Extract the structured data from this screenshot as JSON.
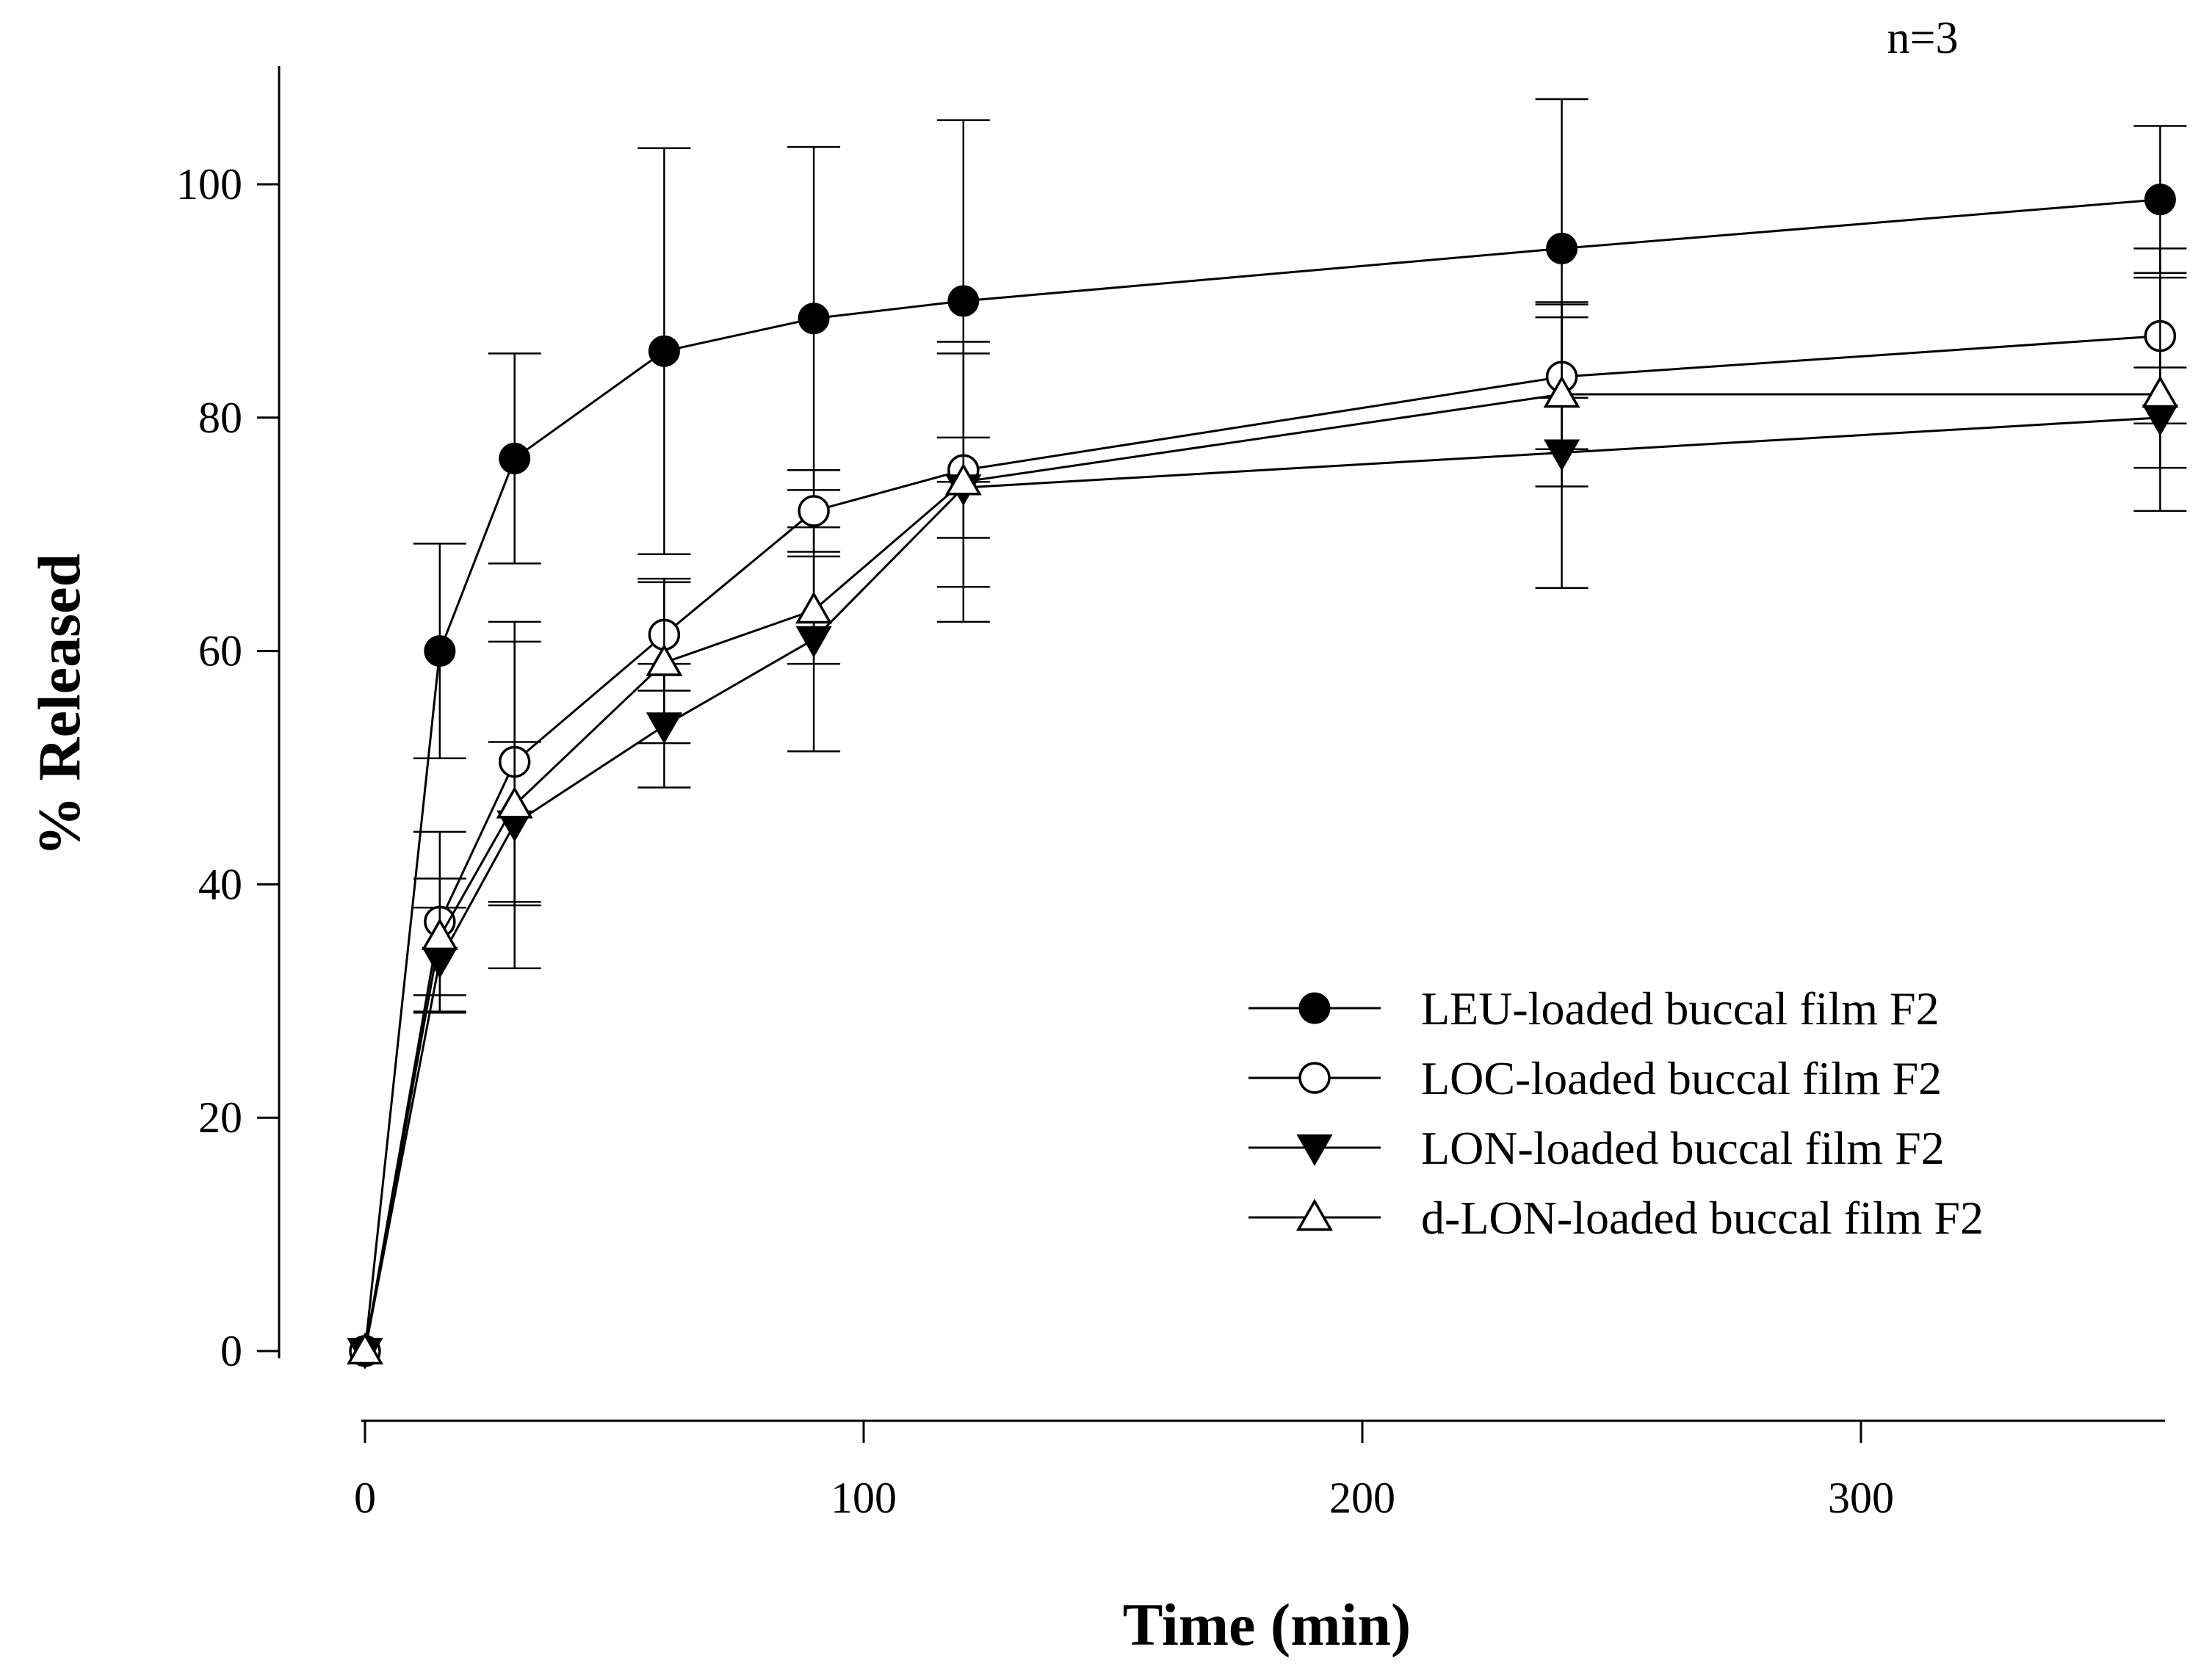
{
  "chart_data": {
    "type": "line",
    "title": "",
    "annotation": "n=3",
    "xlabel": "Time (min)",
    "ylabel": "% Released",
    "xlim": [
      -17,
      360
    ],
    "ylim": [
      -4,
      110
    ],
    "x_ticks": [
      0,
      100,
      200,
      300
    ],
    "y_ticks": [
      0,
      20,
      40,
      60,
      80,
      100
    ],
    "x_tick_labels": [
      "0",
      "100",
      "200",
      "300"
    ],
    "y_tick_labels": [
      "0",
      "20",
      "40",
      "60",
      "80",
      "100"
    ],
    "grid": false,
    "legend_position": "bottom-right",
    "x": [
      0,
      15,
      30,
      60,
      90,
      120,
      240,
      360
    ],
    "series": [
      {
        "name": "LEU-loaded buccal film F2",
        "marker": "filled-circle",
        "values": [
          0,
          60,
          76.5,
          85.7,
          88.5,
          90,
          94.5,
          98.7
        ],
        "errors": [
          0,
          9.2,
          9.0,
          17.4,
          14.7,
          15.5,
          12.8,
          6.3
        ]
      },
      {
        "name": "LOC-loaded buccal film F2",
        "marker": "open-circle",
        "values": [
          0,
          36.8,
          50.5,
          61.4,
          72,
          75.5,
          83.5,
          87
        ],
        "errors": [
          0,
          7.7,
          12.0,
          4.8,
          3.5,
          10.0,
          6.2,
          7.5
        ]
      },
      {
        "name": "LON-loaded buccal film F2",
        "marker": "filled-triangle-down",
        "values": [
          0,
          33.5,
          45.2,
          53.6,
          61,
          74,
          77,
          80
        ],
        "errors": [
          0,
          4.5,
          7.0,
          5.3,
          9.6,
          4.3,
          11.6,
          4.3
        ]
      },
      {
        "name": "d-LON-loaded buccal film F2",
        "marker": "open-triangle-up",
        "values": [
          0,
          35.5,
          46.8,
          59,
          63.5,
          74.5,
          82,
          82
        ],
        "errors": [
          0,
          5.0,
          14.0,
          6.9,
          4.6,
          12.0,
          7.9,
          10.0
        ]
      }
    ]
  }
}
